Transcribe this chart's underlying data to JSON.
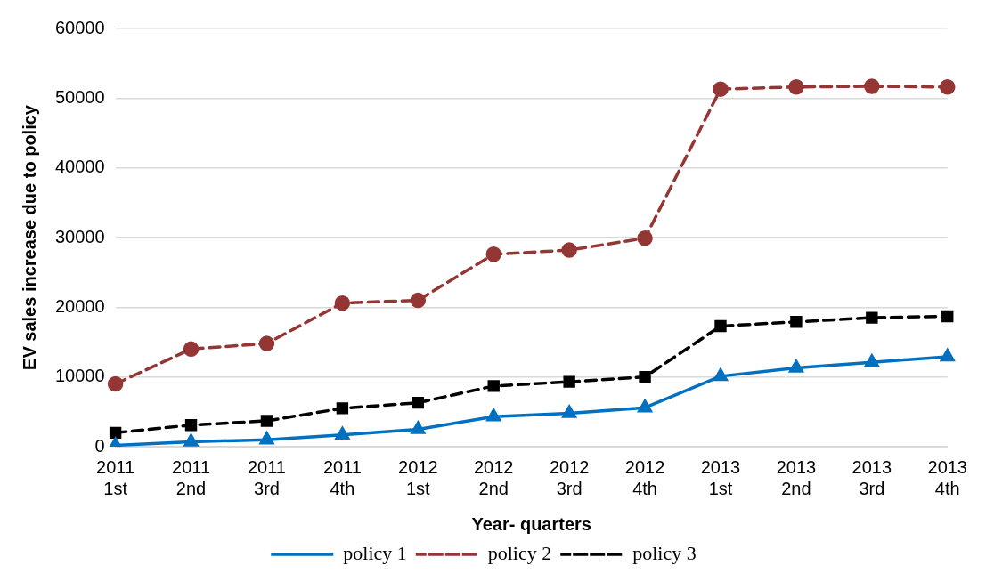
{
  "chart_data": {
    "type": "line",
    "xlabel": "Year- quarters",
    "ylabel": "EV sales increase due to policy",
    "categories": [
      "2011\n1st",
      "2011\n2nd",
      "2011\n3rd",
      "2011\n4th",
      "2012\n1st",
      "2012\n2nd",
      "2012\n3rd",
      "2012\n4th",
      "2013\n1st",
      "2013\n2nd",
      "2013\n3rd",
      "2013\n4th"
    ],
    "series": [
      {
        "name": "policy 1",
        "color": "#0070c0",
        "marker": "triangle",
        "line_style": "solid",
        "values": [
          200,
          700,
          1000,
          1700,
          2500,
          4300,
          4800,
          5600,
          10100,
          11300,
          12100,
          12900
        ]
      },
      {
        "name": "policy 2",
        "color": "#943634",
        "marker": "circle",
        "line_style": "dashed",
        "values": [
          9000,
          14000,
          14800,
          20600,
          21000,
          27600,
          28200,
          29900,
          51300,
          51600,
          51700,
          51600
        ]
      },
      {
        "name": "policy 3",
        "color": "#000000",
        "marker": "square",
        "line_style": "dashed",
        "values": [
          2000,
          3100,
          3700,
          5500,
          6300,
          8700,
          9300,
          10000,
          17300,
          17900,
          18500,
          18700
        ]
      }
    ],
    "ylim": [
      0,
      60000
    ],
    "yticks": [
      0,
      10000,
      20000,
      30000,
      40000,
      50000,
      60000
    ],
    "grid": "y",
    "legend": "bottom"
  }
}
